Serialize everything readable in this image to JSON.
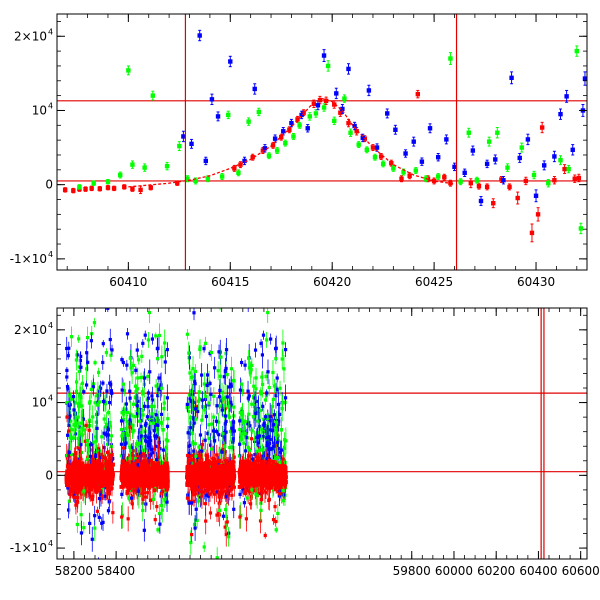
{
  "chart_data": [
    {
      "type": "scatter",
      "xlim": [
        60406.5,
        60432.5
      ],
      "ylim": [
        -11500,
        23000
      ],
      "x_ticks": [
        60410,
        60415,
        60420,
        60425,
        60430
      ],
      "x_tick_labels": [
        "60410",
        "60415",
        "60420",
        "60425",
        "60430"
      ],
      "y_ticks": [
        {
          "value": -10000,
          "label": "-1×10",
          "exp": "4"
        },
        {
          "value": 0,
          "label": "0",
          "exp": ""
        },
        {
          "value": 10000,
          "label": "10",
          "exp": "4"
        },
        {
          "value": 20000,
          "label": "2×10",
          "exp": "4"
        }
      ],
      "hlines": [
        500,
        11300
      ],
      "vlines": [
        60412.8,
        60426.1
      ],
      "model_curve": {
        "color": "#ff0000",
        "x": [
          60410,
          60412,
          60413,
          60414,
          60415,
          60416,
          60417,
          60418,
          60419,
          60419.5,
          60420,
          60420.5,
          60421,
          60422,
          60423,
          60424,
          60425,
          60426
        ],
        "y": [
          -300,
          200,
          600,
          1200,
          2200,
          3400,
          5200,
          7800,
          10800,
          11600,
          11200,
          10000,
          8000,
          5000,
          2700,
          1300,
          500,
          100
        ]
      },
      "series": [
        {
          "color": "#ff0000",
          "points": [
            [
              60406.9,
              -700,
              300
            ],
            [
              60407.3,
              -800,
              300
            ],
            [
              60407.6,
              -600,
              300
            ],
            [
              60407.9,
              -600,
              300
            ],
            [
              60408.2,
              -500,
              300
            ],
            [
              60408.6,
              -550,
              300
            ],
            [
              60409.0,
              -400,
              300
            ],
            [
              60409.3,
              -500,
              300
            ],
            [
              60409.8,
              -300,
              300
            ],
            [
              60410.2,
              -600,
              300
            ],
            [
              60410.6,
              -700,
              500
            ],
            [
              60411.1,
              -400,
              300
            ],
            [
              60412.4,
              200,
              300
            ],
            [
              60415.2,
              2200,
              400
            ],
            [
              60415.5,
              2700,
              400
            ],
            [
              60416.1,
              3700,
              400
            ],
            [
              60416.6,
              4600,
              400
            ],
            [
              60417.1,
              5300,
              400
            ],
            [
              60417.5,
              6400,
              400
            ],
            [
              60417.9,
              7400,
              400
            ],
            [
              60418.3,
              8800,
              400
            ],
            [
              60418.6,
              9700,
              400
            ],
            [
              60419.1,
              10900,
              500
            ],
            [
              60419.4,
              11400,
              500
            ],
            [
              60419.7,
              11300,
              500
            ],
            [
              60420.1,
              10800,
              500
            ],
            [
              60420.4,
              9700,
              500
            ],
            [
              60420.8,
              8300,
              500
            ],
            [
              60421.2,
              7200,
              500
            ],
            [
              60421.6,
              6200,
              400
            ],
            [
              60422.0,
              5000,
              400
            ],
            [
              60422.4,
              3800,
              400
            ],
            [
              60422.9,
              2900,
              400
            ],
            [
              60423.4,
              800,
              400
            ],
            [
              60423.8,
              1200,
              400
            ],
            [
              60424.2,
              12200,
              500
            ],
            [
              60424.7,
              800,
              400
            ],
            [
              60425.0,
              500,
              400
            ],
            [
              60425.5,
              1000,
              400
            ],
            [
              60425.8,
              200,
              400
            ],
            [
              60426.8,
              200,
              600
            ],
            [
              60427.2,
              -200,
              400
            ],
            [
              60427.6,
              -300,
              400
            ],
            [
              60427.9,
              -2500,
              600
            ],
            [
              60428.3,
              700,
              400
            ],
            [
              60428.7,
              -300,
              400
            ],
            [
              60429.1,
              -1800,
              800
            ],
            [
              60429.5,
              500,
              500
            ],
            [
              60429.8,
              -6500,
              1200
            ],
            [
              60430.1,
              -4000,
              900
            ],
            [
              60430.3,
              7700,
              700
            ],
            [
              60430.9,
              600,
              500
            ],
            [
              60431.4,
              2100,
              600
            ],
            [
              60431.9,
              800,
              500
            ],
            [
              60432.1,
              900,
              500
            ]
          ]
        },
        {
          "color": "#00ff00",
          "points": [
            [
              60407.6,
              -300,
              300
            ],
            [
              60408.3,
              200,
              300
            ],
            [
              60409.0,
              400,
              300
            ],
            [
              60409.6,
              1300,
              400
            ],
            [
              60410.0,
              15400,
              600
            ],
            [
              60410.2,
              2700,
              500
            ],
            [
              60410.8,
              2300,
              500
            ],
            [
              60411.2,
              12000,
              600
            ],
            [
              60411.9,
              2500,
              500
            ],
            [
              60412.5,
              5200,
              600
            ],
            [
              60412.9,
              800,
              400
            ],
            [
              60413.3,
              500,
              400
            ],
            [
              60413.9,
              800,
              400
            ],
            [
              60414.6,
              1100,
              400
            ],
            [
              60414.9,
              9400,
              500
            ],
            [
              60415.4,
              1600,
              400
            ],
            [
              60415.9,
              8500,
              500
            ],
            [
              60416.4,
              9800,
              500
            ],
            [
              60416.9,
              3900,
              400
            ],
            [
              60417.3,
              4600,
              400
            ],
            [
              60417.7,
              5600,
              400
            ],
            [
              60418.1,
              6500,
              400
            ],
            [
              60418.4,
              8000,
              400
            ],
            [
              60418.9,
              9200,
              500
            ],
            [
              60419.2,
              9600,
              500
            ],
            [
              60419.6,
              10400,
              500
            ],
            [
              60419.8,
              16000,
              700
            ],
            [
              60420.1,
              8600,
              500
            ],
            [
              60420.6,
              11600,
              500
            ],
            [
              60420.9,
              7000,
              500
            ],
            [
              60421.3,
              5400,
              400
            ],
            [
              60421.7,
              4700,
              400
            ],
            [
              60422.1,
              3700,
              400
            ],
            [
              60422.5,
              2800,
              400
            ],
            [
              60423.0,
              2200,
              400
            ],
            [
              60423.5,
              1700,
              400
            ],
            [
              60424.1,
              1900,
              400
            ],
            [
              60424.6,
              800,
              400
            ],
            [
              60425.2,
              1100,
              400
            ],
            [
              60425.8,
              17000,
              800
            ],
            [
              60426.3,
              400,
              400
            ],
            [
              60426.7,
              7000,
              600
            ],
            [
              60427.1,
              600,
              400
            ],
            [
              60427.7,
              5800,
              600
            ],
            [
              60428.1,
              7000,
              700
            ],
            [
              60428.6,
              2300,
              500
            ],
            [
              60429.3,
              5000,
              600
            ],
            [
              60429.9,
              1300,
              500
            ],
            [
              60430.6,
              200,
              500
            ],
            [
              60431.2,
              3300,
              600
            ],
            [
              60431.6,
              2100,
              500
            ],
            [
              60432.0,
              18000,
              700
            ],
            [
              60432.2,
              -5900,
              700
            ]
          ]
        },
        {
          "color": "#0000ff",
          "points": [
            [
              60412.7,
              6500,
              700
            ],
            [
              60413.1,
              5500,
              600
            ],
            [
              60413.5,
              20100,
              700
            ],
            [
              60413.8,
              3200,
              500
            ],
            [
              60414.1,
              11500,
              700
            ],
            [
              60414.4,
              9200,
              600
            ],
            [
              60415.0,
              16600,
              700
            ],
            [
              60415.7,
              3200,
              500
            ],
            [
              60416.2,
              12900,
              700
            ],
            [
              60416.7,
              4900,
              500
            ],
            [
              60417.2,
              6200,
              500
            ],
            [
              60417.6,
              7200,
              500
            ],
            [
              60418.0,
              8300,
              500
            ],
            [
              60418.5,
              9400,
              500
            ],
            [
              60418.8,
              7600,
              500
            ],
            [
              60419.3,
              10700,
              600
            ],
            [
              60419.6,
              17400,
              800
            ],
            [
              60420.2,
              12300,
              700
            ],
            [
              60420.5,
              10200,
              600
            ],
            [
              60420.8,
              15600,
              700
            ],
            [
              60421.1,
              7900,
              500
            ],
            [
              60421.5,
              6300,
              500
            ],
            [
              60421.8,
              12700,
              700
            ],
            [
              60422.2,
              5000,
              500
            ],
            [
              60422.7,
              9600,
              600
            ],
            [
              60423.1,
              7400,
              600
            ],
            [
              60423.6,
              4200,
              500
            ],
            [
              60424.0,
              5800,
              600
            ],
            [
              60424.4,
              3100,
              500
            ],
            [
              60424.8,
              7600,
              600
            ],
            [
              60425.2,
              3700,
              500
            ],
            [
              60425.6,
              6100,
              600
            ],
            [
              60426.0,
              2400,
              500
            ],
            [
              60426.5,
              1600,
              500
            ],
            [
              60426.9,
              4600,
              600
            ],
            [
              60427.3,
              -2200,
              600
            ],
            [
              60427.6,
              2800,
              500
            ],
            [
              60428.0,
              3400,
              600
            ],
            [
              60428.4,
              600,
              500
            ],
            [
              60428.8,
              14400,
              800
            ],
            [
              60429.2,
              3600,
              600
            ],
            [
              60429.6,
              6100,
              700
            ],
            [
              60430.0,
              -1500,
              800
            ],
            [
              60430.4,
              2600,
              600
            ],
            [
              60430.9,
              3800,
              700
            ],
            [
              60431.2,
              9500,
              700
            ],
            [
              60431.5,
              11900,
              800
            ],
            [
              60431.8,
              4700,
              700
            ],
            [
              60432.3,
              10000,
              800
            ],
            [
              60432.4,
              14300,
              900
            ]
          ]
        }
      ]
    },
    {
      "type": "scatter",
      "xlim": [
        58120,
        60630
      ],
      "ylim": [
        -11500,
        23000
      ],
      "x_ticks": [
        58200,
        58400,
        59800,
        60000,
        60200,
        60400,
        60600
      ],
      "x_tick_labels": [
        "58200",
        "58400",
        "59800",
        "60000",
        "60200",
        "60400",
        "60600"
      ],
      "y_ticks": [
        {
          "value": -10000,
          "label": "-1×10",
          "exp": "4"
        },
        {
          "value": 0,
          "label": "0",
          "exp": ""
        },
        {
          "value": 10000,
          "label": "10",
          "exp": "4"
        },
        {
          "value": 20000,
          "label": "2×10",
          "exp": "4"
        }
      ],
      "hlines": [
        500,
        11300
      ],
      "vlines": [
        60412.8,
        60426.1
      ],
      "season_windows": [
        [
          58165,
          58385
        ],
        [
          58425,
          58645
        ],
        [
          58735,
          58960
        ],
        [
          58985,
          59205
        ]
      ],
      "series_colors": [
        "#ff0000",
        "#00ff00",
        "#0000ff"
      ]
    }
  ]
}
